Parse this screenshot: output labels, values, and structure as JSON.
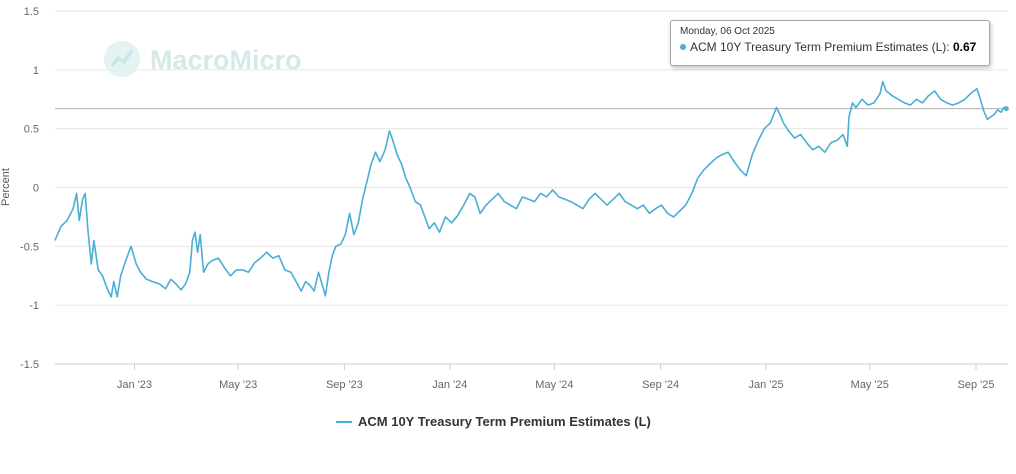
{
  "watermark": "MacroMicro",
  "tooltip": {
    "date": "Monday, 06 Oct 2025",
    "series": "ACM 10Y Treasury Term Premium Estimates (L): ",
    "value": "0.67"
  },
  "legend": {
    "label": "ACM 10Y Treasury Term Premium Estimates (L)"
  },
  "colors": {
    "line": "#4aaed5",
    "grid": "#e6e6e6",
    "crosshair": "#b0b0b0"
  },
  "chart_data": {
    "type": "line",
    "title": "",
    "xlabel": "",
    "ylabel": "Percent",
    "ylim": [
      -1.5,
      1.5
    ],
    "yticks": [
      1.5,
      1,
      0.5,
      0,
      -0.5,
      -1,
      -1.5
    ],
    "ytick_labels": [
      "1.5",
      "1",
      "0.5",
      "0",
      "-0.5",
      "-1",
      "-1.5"
    ],
    "x_range": [
      "2022-10-01",
      "2025-10-08"
    ],
    "xticks": [
      {
        "date": "2023-01-01",
        "label": "Jan '23"
      },
      {
        "date": "2023-05-01",
        "label": "May '23"
      },
      {
        "date": "2023-09-01",
        "label": "Sep '23"
      },
      {
        "date": "2024-01-01",
        "label": "Jan '24"
      },
      {
        "date": "2024-05-01",
        "label": "May '24"
      },
      {
        "date": "2024-09-01",
        "label": "Sep '24"
      },
      {
        "date": "2025-01-01",
        "label": "Jan '25"
      },
      {
        "date": "2025-05-01",
        "label": "May '25"
      },
      {
        "date": "2025-09-01",
        "label": "Sep '25"
      }
    ],
    "series": [
      {
        "name": "ACM 10Y Treasury Term Premium Estimates (L)",
        "points": [
          [
            "2022-10-01",
            -0.45
          ],
          [
            "2022-10-08",
            -0.33
          ],
          [
            "2022-10-15",
            -0.28
          ],
          [
            "2022-10-22",
            -0.18
          ],
          [
            "2022-10-26",
            -0.05
          ],
          [
            "2022-10-29",
            -0.28
          ],
          [
            "2022-11-02",
            -0.1
          ],
          [
            "2022-11-05",
            -0.05
          ],
          [
            "2022-11-08",
            -0.35
          ],
          [
            "2022-11-12",
            -0.65
          ],
          [
            "2022-11-15",
            -0.45
          ],
          [
            "2022-11-20",
            -0.7
          ],
          [
            "2022-11-25",
            -0.75
          ],
          [
            "2022-11-30",
            -0.85
          ],
          [
            "2022-12-05",
            -0.93
          ],
          [
            "2022-12-08",
            -0.8
          ],
          [
            "2022-12-12",
            -0.93
          ],
          [
            "2022-12-16",
            -0.75
          ],
          [
            "2022-12-22",
            -0.62
          ],
          [
            "2022-12-28",
            -0.5
          ],
          [
            "2023-01-03",
            -0.65
          ],
          [
            "2023-01-08",
            -0.72
          ],
          [
            "2023-01-15",
            -0.78
          ],
          [
            "2023-01-22",
            -0.8
          ],
          [
            "2023-01-30",
            -0.82
          ],
          [
            "2023-02-06",
            -0.86
          ],
          [
            "2023-02-12",
            -0.78
          ],
          [
            "2023-02-18",
            -0.82
          ],
          [
            "2023-02-24",
            -0.87
          ],
          [
            "2023-03-01",
            -0.82
          ],
          [
            "2023-03-06",
            -0.72
          ],
          [
            "2023-03-09",
            -0.45
          ],
          [
            "2023-03-12",
            -0.38
          ],
          [
            "2023-03-15",
            -0.55
          ],
          [
            "2023-03-18",
            -0.4
          ],
          [
            "2023-03-22",
            -0.72
          ],
          [
            "2023-03-27",
            -0.65
          ],
          [
            "2023-04-01",
            -0.62
          ],
          [
            "2023-04-08",
            -0.6
          ],
          [
            "2023-04-15",
            -0.68
          ],
          [
            "2023-04-22",
            -0.75
          ],
          [
            "2023-04-29",
            -0.7
          ],
          [
            "2023-05-06",
            -0.7
          ],
          [
            "2023-05-13",
            -0.72
          ],
          [
            "2023-05-20",
            -0.64
          ],
          [
            "2023-05-27",
            -0.6
          ],
          [
            "2023-06-03",
            -0.55
          ],
          [
            "2023-06-10",
            -0.6
          ],
          [
            "2023-06-17",
            -0.58
          ],
          [
            "2023-06-24",
            -0.7
          ],
          [
            "2023-07-01",
            -0.72
          ],
          [
            "2023-07-07",
            -0.8
          ],
          [
            "2023-07-13",
            -0.88
          ],
          [
            "2023-07-18",
            -0.8
          ],
          [
            "2023-07-23",
            -0.83
          ],
          [
            "2023-07-28",
            -0.88
          ],
          [
            "2023-08-02",
            -0.72
          ],
          [
            "2023-08-06",
            -0.82
          ],
          [
            "2023-08-10",
            -0.92
          ],
          [
            "2023-08-14",
            -0.72
          ],
          [
            "2023-08-18",
            -0.58
          ],
          [
            "2023-08-22",
            -0.5
          ],
          [
            "2023-08-28",
            -0.48
          ],
          [
            "2023-09-02",
            -0.4
          ],
          [
            "2023-09-07",
            -0.22
          ],
          [
            "2023-09-12",
            -0.4
          ],
          [
            "2023-09-17",
            -0.3
          ],
          [
            "2023-09-22",
            -0.1
          ],
          [
            "2023-09-27",
            0.05
          ],
          [
            "2023-10-02",
            0.2
          ],
          [
            "2023-10-07",
            0.3
          ],
          [
            "2023-10-12",
            0.22
          ],
          [
            "2023-10-18",
            0.32
          ],
          [
            "2023-10-23",
            0.48
          ],
          [
            "2023-10-27",
            0.4
          ],
          [
            "2023-11-01",
            0.28
          ],
          [
            "2023-11-06",
            0.2
          ],
          [
            "2023-11-11",
            0.08
          ],
          [
            "2023-11-16",
            0.0
          ],
          [
            "2023-11-22",
            -0.12
          ],
          [
            "2023-11-28",
            -0.15
          ],
          [
            "2023-12-03",
            -0.25
          ],
          [
            "2023-12-08",
            -0.35
          ],
          [
            "2023-12-14",
            -0.3
          ],
          [
            "2023-12-20",
            -0.38
          ],
          [
            "2023-12-27",
            -0.25
          ],
          [
            "2024-01-03",
            -0.3
          ],
          [
            "2024-01-10",
            -0.24
          ],
          [
            "2024-01-17",
            -0.15
          ],
          [
            "2024-01-24",
            -0.05
          ],
          [
            "2024-01-30",
            -0.08
          ],
          [
            "2024-02-05",
            -0.22
          ],
          [
            "2024-02-12",
            -0.15
          ],
          [
            "2024-02-19",
            -0.1
          ],
          [
            "2024-02-26",
            -0.05
          ],
          [
            "2024-03-04",
            -0.12
          ],
          [
            "2024-03-11",
            -0.15
          ],
          [
            "2024-03-18",
            -0.18
          ],
          [
            "2024-03-25",
            -0.08
          ],
          [
            "2024-04-01",
            -0.1
          ],
          [
            "2024-04-08",
            -0.12
          ],
          [
            "2024-04-15",
            -0.05
          ],
          [
            "2024-04-22",
            -0.08
          ],
          [
            "2024-04-29",
            -0.02
          ],
          [
            "2024-05-06",
            -0.08
          ],
          [
            "2024-05-13",
            -0.1
          ],
          [
            "2024-05-20",
            -0.12
          ],
          [
            "2024-05-27",
            -0.15
          ],
          [
            "2024-06-03",
            -0.18
          ],
          [
            "2024-06-10",
            -0.1
          ],
          [
            "2024-06-17",
            -0.05
          ],
          [
            "2024-06-24",
            -0.1
          ],
          [
            "2024-07-01",
            -0.15
          ],
          [
            "2024-07-08",
            -0.1
          ],
          [
            "2024-07-15",
            -0.05
          ],
          [
            "2024-07-22",
            -0.12
          ],
          [
            "2024-07-29",
            -0.15
          ],
          [
            "2024-08-05",
            -0.18
          ],
          [
            "2024-08-12",
            -0.15
          ],
          [
            "2024-08-19",
            -0.22
          ],
          [
            "2024-08-26",
            -0.18
          ],
          [
            "2024-09-02",
            -0.15
          ],
          [
            "2024-09-09",
            -0.22
          ],
          [
            "2024-09-16",
            -0.25
          ],
          [
            "2024-09-23",
            -0.2
          ],
          [
            "2024-09-30",
            -0.15
          ],
          [
            "2024-10-07",
            -0.05
          ],
          [
            "2024-10-14",
            0.08
          ],
          [
            "2024-10-21",
            0.15
          ],
          [
            "2024-10-28",
            0.2
          ],
          [
            "2024-11-04",
            0.25
          ],
          [
            "2024-11-11",
            0.28
          ],
          [
            "2024-11-18",
            0.3
          ],
          [
            "2024-11-25",
            0.22
          ],
          [
            "2024-12-02",
            0.15
          ],
          [
            "2024-12-09",
            0.1
          ],
          [
            "2024-12-16",
            0.28
          ],
          [
            "2024-12-23",
            0.4
          ],
          [
            "2024-12-30",
            0.5
          ],
          [
            "2025-01-06",
            0.55
          ],
          [
            "2025-01-13",
            0.68
          ],
          [
            "2025-01-17",
            0.62
          ],
          [
            "2025-01-21",
            0.55
          ],
          [
            "2025-01-27",
            0.48
          ],
          [
            "2025-02-03",
            0.42
          ],
          [
            "2025-02-10",
            0.45
          ],
          [
            "2025-02-17",
            0.38
          ],
          [
            "2025-02-24",
            0.32
          ],
          [
            "2025-03-03",
            0.35
          ],
          [
            "2025-03-10",
            0.3
          ],
          [
            "2025-03-17",
            0.38
          ],
          [
            "2025-03-24",
            0.4
          ],
          [
            "2025-03-31",
            0.45
          ],
          [
            "2025-04-05",
            0.35
          ],
          [
            "2025-04-07",
            0.6
          ],
          [
            "2025-04-11",
            0.72
          ],
          [
            "2025-04-15",
            0.68
          ],
          [
            "2025-04-22",
            0.75
          ],
          [
            "2025-04-29",
            0.7
          ],
          [
            "2025-05-06",
            0.72
          ],
          [
            "2025-05-13",
            0.8
          ],
          [
            "2025-05-16",
            0.9
          ],
          [
            "2025-05-20",
            0.82
          ],
          [
            "2025-05-27",
            0.78
          ],
          [
            "2025-06-03",
            0.75
          ],
          [
            "2025-06-10",
            0.72
          ],
          [
            "2025-06-17",
            0.7
          ],
          [
            "2025-06-24",
            0.75
          ],
          [
            "2025-07-01",
            0.72
          ],
          [
            "2025-07-08",
            0.78
          ],
          [
            "2025-07-15",
            0.82
          ],
          [
            "2025-07-22",
            0.75
          ],
          [
            "2025-07-29",
            0.72
          ],
          [
            "2025-08-05",
            0.7
          ],
          [
            "2025-08-12",
            0.72
          ],
          [
            "2025-08-19",
            0.75
          ],
          [
            "2025-08-26",
            0.8
          ],
          [
            "2025-09-02",
            0.84
          ],
          [
            "2025-09-06",
            0.75
          ],
          [
            "2025-09-10",
            0.65
          ],
          [
            "2025-09-14",
            0.58
          ],
          [
            "2025-09-18",
            0.6
          ],
          [
            "2025-09-22",
            0.62
          ],
          [
            "2025-09-26",
            0.66
          ],
          [
            "2025-09-30",
            0.64
          ],
          [
            "2025-10-03",
            0.68
          ],
          [
            "2025-10-06",
            0.67
          ]
        ]
      }
    ]
  }
}
